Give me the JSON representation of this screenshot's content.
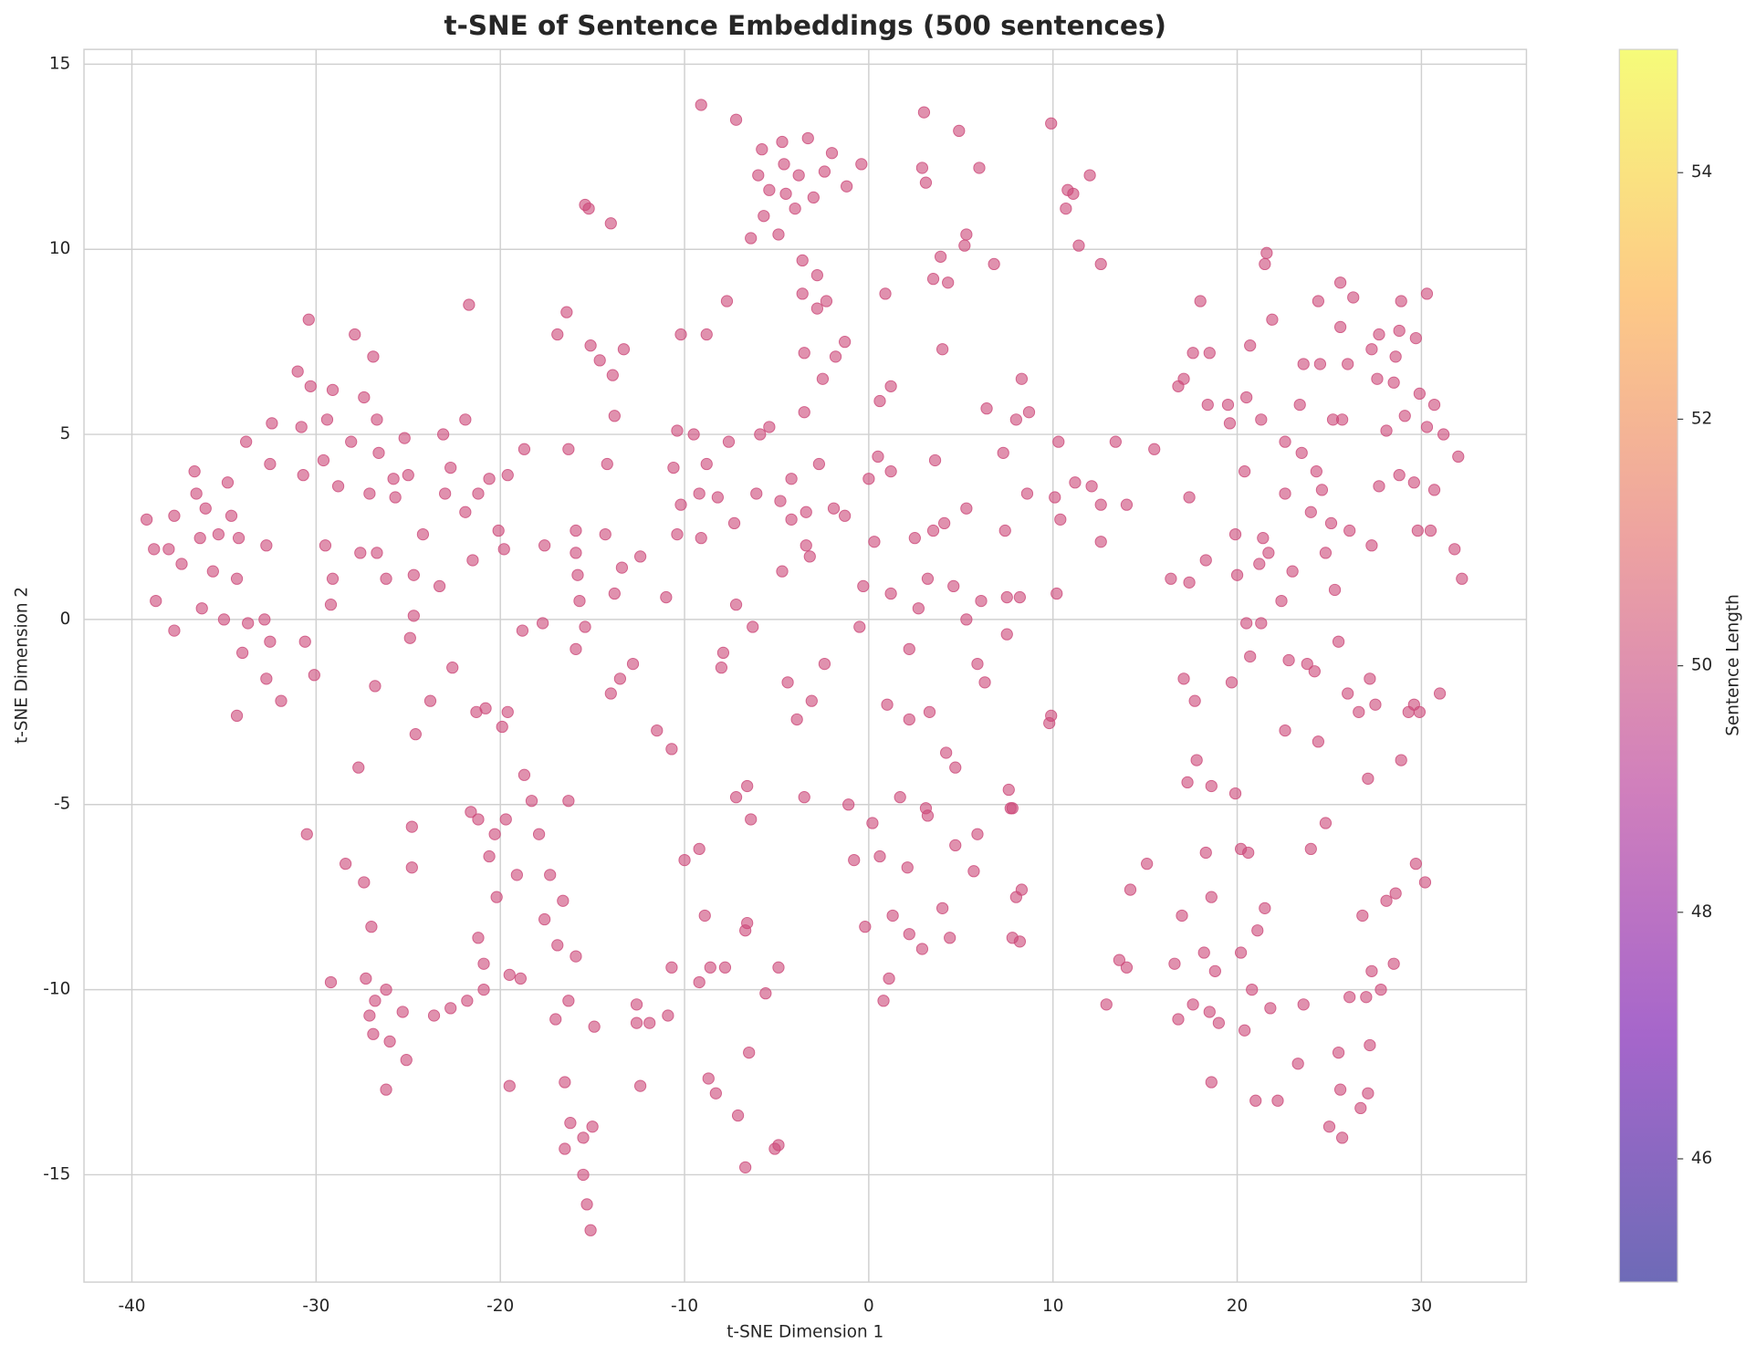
{
  "chart_data": {
    "type": "scatter",
    "title": "t-SNE of Sentence Embeddings (500 sentences)",
    "x_label": "t-SNE Dimension 1",
    "y_label": "t-SNE Dimension 2",
    "xlim": [
      -42.6,
      35.7
    ],
    "ylim": [
      -17.9,
      15.4
    ],
    "xticks": [
      -40,
      -30,
      -20,
      -10,
      0,
      10,
      20,
      30
    ],
    "yticks": [
      -15,
      -10,
      -5,
      0,
      5,
      10,
      15
    ],
    "grid": true,
    "color": "#cc4778",
    "alpha": 0.6,
    "colorbar": {
      "label": "Sentence Length",
      "colormap": "plasma",
      "lim": [
        45,
        55
      ],
      "ticks": [
        46,
        48,
        50,
        52,
        54
      ]
    },
    "x": [
      -39.2,
      -38.8,
      -38.7,
      -38,
      -37.7,
      -37.7,
      -37.3,
      -36.6,
      -36.5,
      -36.3,
      -36.2,
      -36,
      -35.6,
      -35.3,
      -35,
      -34.8,
      -34.6,
      -34.3,
      -34.2,
      -34.3,
      -34,
      -33.8,
      -33.7,
      -32.8,
      -32.7,
      -32.7,
      -32.5,
      -32.4,
      -32.5,
      -31.9,
      -31,
      -30.8,
      -30.7,
      -30.6,
      -30.5,
      -30.4,
      -30.3,
      -30.1,
      -29.6,
      -29.5,
      -29.4,
      -29.2,
      -29.1,
      -29.1,
      -28.8,
      -29.2,
      -28.4,
      -28.1,
      -27.9,
      -27.7,
      -27.6,
      -27.4,
      -27.4,
      -27.3,
      -27.1,
      -27.1,
      -27,
      -26.9,
      -26.9,
      -26.8,
      -26.8,
      -26.7,
      -26.6,
      -26.7,
      -26.2,
      -26.2,
      -26,
      -26.2,
      -25.8,
      -25.7,
      -25.3,
      -25.2,
      -25.1,
      -25,
      -24.9,
      -24.8,
      -24.8,
      -24.7,
      -24.7,
      -24.6,
      -24.2,
      -23.8,
      -23.6,
      -23.3,
      -23.1,
      -23,
      -22.7,
      -22.6,
      -22.7,
      -21.9,
      -21.9,
      -21.8,
      -21.7,
      -21.6,
      -21.5,
      -21.3,
      -21.2,
      -21.2,
      -21.2,
      -20.9,
      -20.9,
      -20.8,
      -20.6,
      -20.6,
      -20.3,
      -20.2,
      -20.1,
      -19.9,
      -19.8,
      -19.7,
      -19.6,
      -19.6,
      -19.5,
      -19.5,
      -19.1,
      -18.9,
      -18.8,
      -18.7,
      -18.7,
      -18.3,
      -17.9,
      -17.7,
      -17.6,
      -17.6,
      -17.3,
      -17,
      -16.9,
      -16.9,
      -16.6,
      -16.5,
      -16.5,
      -16.4,
      -16.3,
      -16.3,
      -16.3,
      -16.2,
      -15.9,
      -15.9,
      -15.9,
      -15.8,
      -15.9,
      -15.7,
      -15.5,
      -15.5,
      -15.4,
      -15.4,
      -15.2,
      -15.3,
      -15.1,
      -15.1,
      -15,
      -14.9,
      -14.6,
      -14.3,
      -14.2,
      -14,
      -14,
      -13.9,
      -13.8,
      -13.8,
      -13.5,
      -13.4,
      -13.3,
      -12.8,
      -12.6,
      -12.6,
      -12.4,
      -12.4,
      -11.9,
      -11.5,
      -11,
      -10.9,
      -10.7,
      -10.7,
      -10.6,
      -10.4,
      -10.4,
      -10.2,
      -10.2,
      -10,
      -9.5,
      -9.2,
      -9.2,
      -9.2,
      -9.1,
      -9.1,
      -8.9,
      -8.8,
      -8.8,
      -8.7,
      -8.6,
      -8.3,
      -8.2,
      -8,
      -7.9,
      -7.8,
      -7.7,
      -7.6,
      -7.3,
      -7.2,
      -7.2,
      -7.1,
      -7.2,
      -6.7,
      -6.7,
      -6.6,
      -6.6,
      -6.5,
      -6.4,
      -6.4,
      -6.3,
      -6.1,
      -6,
      -5.9,
      -5.8,
      -5.7,
      -5.6,
      -5.4,
      -5.4,
      -5.1,
      -4.9,
      -4.9,
      -4.9,
      -4.8,
      -4.7,
      -4.7,
      -4.6,
      -4.5,
      -4.4,
      -4.2,
      -4.2,
      -4,
      -3.9,
      -3.8,
      -3.6,
      -3.6,
      -3.5,
      -3.5,
      -3.5,
      -3.4,
      -3.4,
      -3.3,
      -3.2,
      -3.1,
      -3,
      -2.8,
      -2.8,
      -2.7,
      -2.5,
      -2.4,
      -2.4,
      -2.3,
      -2,
      -1.9,
      -1.8,
      -1.3,
      -1.3,
      -1.2,
      -1.1,
      -0.8,
      -0.5,
      -0.4,
      -0.3,
      -0.2,
      0,
      0.2,
      0.3,
      0.5,
      0.6,
      0.6,
      0.8,
      0.9,
      1,
      1.1,
      1.2,
      1.2,
      1.2,
      1.3,
      1.7,
      2.1,
      2.2,
      2.2,
      2.2,
      2.5,
      2.7,
      2.9,
      2.9,
      3,
      3.1,
      3.1,
      3.2,
      3.2,
      3.3,
      3.5,
      3.5,
      3.6,
      3.9,
      4,
      4,
      4.1,
      4.2,
      4.3,
      4.4,
      4.6,
      4.7,
      4.7,
      4.9,
      5.2,
      5.3,
      5.3,
      5.3,
      5.7,
      5.9,
      5.9,
      6,
      6.1,
      6.3,
      6.4,
      6.8,
      7.3,
      7.4,
      7.5,
      7.5,
      7.6,
      7.7,
      7.8,
      7.8,
      8,
      8,
      8.2,
      8.2,
      8.3,
      8.3,
      8.6,
      8.7,
      9.8,
      9.9,
      9.9,
      10.1,
      10.2,
      10.3,
      10.4,
      10.7,
      10.8,
      11.1,
      11.2,
      11.4,
      12,
      12.1,
      12.6,
      12.6,
      12.6,
      12.9,
      13.4,
      13.6,
      14,
      14,
      14.2,
      15.1,
      15.5,
      16.4,
      16.6,
      16.8,
      16.8,
      17,
      17.1,
      17.1,
      17.3,
      17.4,
      17.4,
      17.6,
      17.6,
      17.7,
      17.8,
      18,
      18.2,
      18.3,
      18.3,
      18.5,
      18.4,
      18.5,
      18.6,
      18.6,
      18.6,
      18.8,
      19,
      19.5,
      19.6,
      19.7,
      19.9,
      19.9,
      20,
      20.2,
      20.2,
      20.4,
      20.4,
      20.5,
      20.5,
      20.6,
      20.7,
      20.7,
      20.8,
      21,
      21.1,
      21.2,
      21.3,
      21.3,
      21.4,
      21.5,
      21.5,
      21.6,
      21.7,
      21.8,
      21.9,
      22.2,
      22.4,
      22.6,
      22.6,
      22.6,
      22.8,
      23,
      23.3,
      23.4,
      23.5,
      23.6,
      23.6,
      23.8,
      24,
      24,
      24.2,
      24.3,
      24.4,
      24.4,
      24.5,
      24.6,
      24.8,
      24.8,
      25,
      25.1,
      25.2,
      25.3,
      25.5,
      25.5,
      25.6,
      25.6,
      25.6,
      25.7,
      25.7,
      26,
      26,
      26.1,
      26.1,
      26.3,
      26.6,
      26.7,
      26.8,
      27,
      27.1,
      27.1,
      27.2,
      27.2,
      27.3,
      27.3,
      27.3,
      27.5,
      27.6,
      27.7,
      27.7,
      27.8,
      28.1,
      28.1,
      28.5,
      28.5,
      28.6,
      28.6,
      28.8,
      28.8,
      28.9,
      28.9,
      29.1,
      29.3,
      29.6,
      29.6,
      29.7,
      29.7,
      29.8,
      29.9,
      29.9,
      30.2,
      30.3,
      30.3,
      30.5,
      30.7,
      30.7,
      31,
      31.2,
      31.8,
      32,
      32.2
    ],
    "values": [
      2.7,
      1.9,
      0.5,
      1.9,
      2.8,
      -0.3,
      1.5,
      4,
      3.4,
      2.2,
      0.3,
      3,
      1.3,
      2.3,
      0,
      3.7,
      2.8,
      1.1,
      2.2,
      -2.6,
      -0.9,
      4.8,
      -0.1,
      0,
      2,
      -1.6,
      4.2,
      5.3,
      -0.6,
      -2.2,
      6.7,
      5.2,
      3.9,
      -0.6,
      -5.8,
      8.1,
      6.3,
      -1.5,
      4.3,
      2,
      5.4,
      0.4,
      6.2,
      1.1,
      3.6,
      -9.8,
      -6.6,
      4.8,
      7.7,
      -4,
      1.8,
      6,
      -7.1,
      -9.7,
      3.4,
      -10.7,
      -8.3,
      7.1,
      -11.2,
      -1.8,
      -10.3,
      5.4,
      4.5,
      1.8,
      1.1,
      -10,
      -11.4,
      -12.7,
      3.8,
      3.3,
      -10.6,
      4.9,
      -11.9,
      3.9,
      -0.5,
      -6.7,
      -5.6,
      1.2,
      0.1,
      -3.1,
      2.3,
      -2.2,
      -10.7,
      0.9,
      5,
      3.4,
      4.1,
      -1.3,
      -10.5,
      2.9,
      5.4,
      -10.3,
      8.5,
      -5.2,
      1.6,
      -2.5,
      3.4,
      -5.4,
      -8.6,
      -9.3,
      -10,
      -2.4,
      3.8,
      -6.4,
      -5.8,
      -7.5,
      2.4,
      -2.9,
      1.9,
      -5.4,
      3.9,
      -2.5,
      -9.6,
      -12.6,
      -6.9,
      -9.7,
      -0.3,
      4.6,
      -4.2,
      -4.9,
      -5.8,
      -0.1,
      2,
      -8.1,
      -6.9,
      -10.8,
      7.7,
      -8.8,
      -7.6,
      -12.5,
      -14.3,
      8.3,
      4.6,
      -4.9,
      -10.3,
      -13.6,
      -9.1,
      2.4,
      1.8,
      1.2,
      -0.8,
      0.5,
      -14,
      -15,
      -0.2,
      11.2,
      11.1,
      -15.8,
      7.4,
      -16.5,
      -13.7,
      -11,
      7,
      2.3,
      4.2,
      -2,
      10.7,
      6.6,
      5.5,
      0.7,
      -1.6,
      1.4,
      7.3,
      -1.2,
      -10.4,
      -10.9,
      -12.6,
      1.7,
      -10.9,
      -3,
      0.6,
      -10.7,
      -9.4,
      -3.5,
      4.1,
      5.1,
      2.3,
      3.1,
      7.7,
      -6.5,
      5,
      3.4,
      -6.2,
      -9.8,
      2.2,
      13.9,
      -8,
      7.7,
      4.2,
      -12.4,
      -9.4,
      -12.8,
      3.3,
      -1.3,
      -0.9,
      -9.4,
      8.6,
      4.8,
      2.6,
      -4.8,
      0.4,
      -13.4,
      13.5,
      -14.8,
      -8.4,
      -8.2,
      -4.5,
      -11.7,
      -5.4,
      10.3,
      -0.2,
      3.4,
      12,
      5,
      12.7,
      10.9,
      -10.1,
      11.6,
      5.2,
      -14.3,
      -9.4,
      -14.2,
      10.4,
      3.2,
      12.9,
      1.3,
      12.3,
      11.5,
      -1.7,
      3.8,
      2.7,
      11.1,
      -2.7,
      12,
      9.7,
      8.8,
      5.6,
      7.2,
      -4.8,
      2,
      2.9,
      13,
      1.7,
      -2.2,
      11.4,
      8.4,
      9.3,
      4.2,
      6.5,
      12.1,
      -1.2,
      8.6,
      12.6,
      3,
      7.1,
      2.8,
      7.5,
      11.7,
      -5,
      -6.5,
      -0.2,
      12.3,
      0.9,
      -8.3,
      3.8,
      -5.5,
      2.1,
      4.4,
      -6.4,
      5.9,
      -10.3,
      8.8,
      -2.3,
      -9.7,
      4,
      0.7,
      6.3,
      -8,
      -4.8,
      -6.7,
      -8.5,
      -0.8,
      -2.7,
      2.2,
      0.3,
      -8.9,
      12.2,
      13.7,
      11.8,
      -5.1,
      -5.3,
      1.1,
      -2.5,
      2.4,
      9.2,
      4.3,
      9.8,
      7.3,
      -7.8,
      2.6,
      -3.6,
      9.1,
      -8.6,
      0.9,
      -4,
      -6.1,
      13.2,
      10.1,
      10.4,
      3,
      0,
      -6.8,
      -5.8,
      -1.2,
      12.2,
      0.5,
      -1.7,
      5.7,
      9.6,
      4.5,
      2.4,
      -0.4,
      0.6,
      -4.6,
      -5.1,
      -5.1,
      -8.6,
      -7.5,
      5.4,
      -8.7,
      0.6,
      6.5,
      -7.3,
      3.4,
      5.6,
      -2.8,
      -2.6,
      13.4,
      3.3,
      0.7,
      4.8,
      2.7,
      11.1,
      11.6,
      11.5,
      3.7,
      10.1,
      12,
      3.6,
      9.6,
      3.1,
      2.1,
      -10.4,
      4.8,
      -9.2,
      -9.4,
      3.1,
      -7.3,
      -6.6,
      4.6,
      1.1,
      -9.3,
      -10.8,
      6.3,
      -8,
      -1.6,
      6.5,
      -4.4,
      1,
      3.3,
      7.2,
      -10.4,
      -2.2,
      -3.8,
      8.6,
      -9,
      -6.3,
      1.6,
      7.2,
      5.8,
      -10.6,
      -12.5,
      -7.5,
      -4.5,
      -9.5,
      -10.9,
      5.8,
      5.3,
      -1.7,
      2.3,
      -4.7,
      1.2,
      -6.2,
      -9,
      4,
      -11.1,
      -0.1,
      6,
      -6.3,
      7.4,
      -1,
      -10,
      -13,
      -8.4,
      1.5,
      -0.1,
      5.4,
      2.2,
      -7.8,
      9.6,
      9.9,
      1.8,
      -10.5,
      8.1,
      -13,
      0.5,
      4.8,
      3.4,
      -3,
      -1.1,
      1.3,
      -12,
      5.8,
      4.5,
      6.9,
      -10.4,
      -1.2,
      -6.2,
      2.9,
      -1.4,
      4,
      -3.3,
      8.6,
      6.9,
      3.5,
      -5.5,
      1.8,
      -13.7,
      2.6,
      5.4,
      0.8,
      -11.7,
      -0.6,
      9.1,
      7.9,
      -12.7,
      5.4,
      -14,
      -2,
      6.9,
      2.4,
      -10.2,
      8.7,
      -2.5,
      -13.2,
      -8,
      -10.2,
      -4.3,
      -12.8,
      -11.5,
      -1.6,
      -9.5,
      2,
      7.3,
      -2.3,
      6.5,
      7.7,
      3.6,
      -10,
      5.1,
      -7.6,
      -9.3,
      6.4,
      7.1,
      -7.4,
      3.9,
      7.8,
      8.6,
      -3.8,
      5.5,
      -2.5,
      3.7,
      -2.3,
      7.6,
      -6.6,
      2.4,
      6.1,
      -2.5,
      -7.1,
      5.2,
      8.8,
      2.4,
      3.5,
      5.8,
      -2,
      5,
      1.9,
      4.4,
      1.1
    ]
  }
}
